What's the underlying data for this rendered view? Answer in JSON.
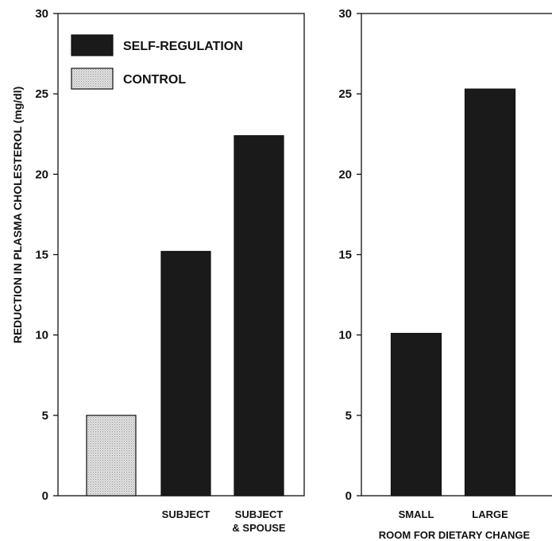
{
  "chart_data": [
    {
      "type": "bar",
      "ylabel": "REDUCTION IN PLASMA CHOLESTEROL (mg/dl)",
      "xlabel": "",
      "ylim": [
        0,
        30
      ],
      "yticks": [
        "0",
        "5",
        "10",
        "15",
        "20",
        "25",
        "30"
      ],
      "categories": [
        "",
        "SUBJECT",
        "SUBJECT\n& SPOUSE"
      ],
      "bars": [
        {
          "series": "CONTROL",
          "value": 5.0
        },
        {
          "series": "SELF-REGULATION",
          "value": 15.2
        },
        {
          "series": "SELF-REGULATION",
          "value": 22.4
        }
      ],
      "legend": {
        "placement": "top-left",
        "entries": [
          {
            "name": "SELF-REGULATION",
            "color": "#1a1a1a",
            "pattern": "solid"
          },
          {
            "name": "CONTROL",
            "color": "#d8d8d8",
            "pattern": "stipple"
          }
        ]
      }
    },
    {
      "type": "bar",
      "xlabel": "ROOM FOR DIETARY CHANGE",
      "ylabel": "",
      "ylim": [
        0,
        30
      ],
      "yticks": [
        "0",
        "5",
        "10",
        "15",
        "20",
        "25",
        "30"
      ],
      "categories": [
        "SMALL",
        "LARGE"
      ],
      "bars": [
        {
          "series": "SELF-REGULATION",
          "value": 10.1
        },
        {
          "series": "SELF-REGULATION",
          "value": 25.3
        }
      ]
    }
  ]
}
